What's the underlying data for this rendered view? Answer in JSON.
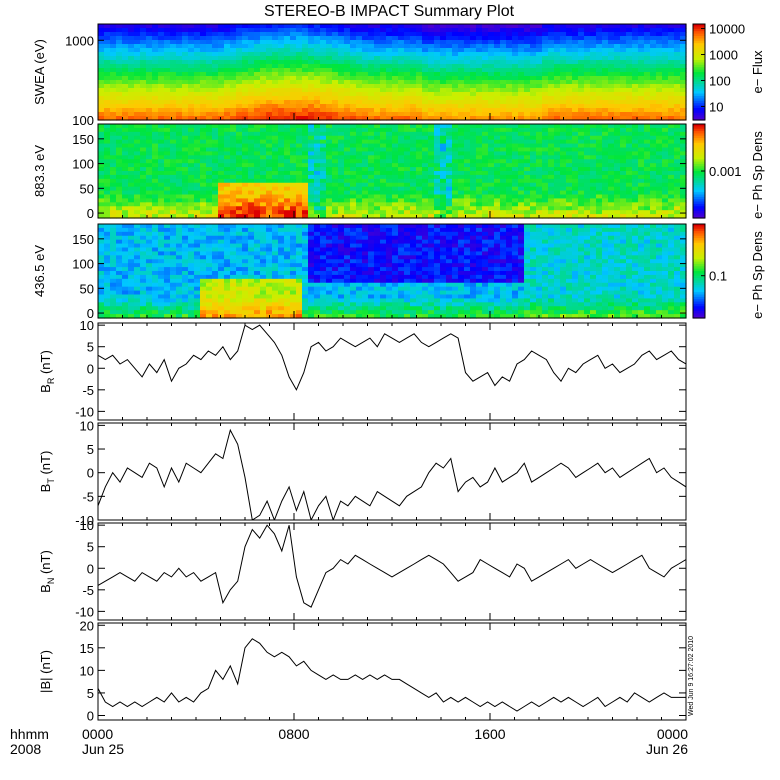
{
  "page": {
    "title": "STEREO-B IMPACT Summary Plot",
    "timestamp": "Wed Jun 9 16:27:02 2010",
    "time_label_1": "hhmm",
    "time_label_2": "2008"
  },
  "chart_data": [
    {
      "type": "heatmap",
      "ylabel": "SWEA (eV)",
      "ylim": [
        100,
        1600
      ],
      "yscale": "log",
      "yticks": [
        "100",
        "1000"
      ],
      "colorbar": {
        "label": "e− Flux",
        "scale": "log",
        "range": [
          3,
          15000
        ],
        "ticks": [
          "10000",
          "1000",
          "100",
          "10"
        ]
      }
    },
    {
      "type": "heatmap",
      "ylabel": "883.3 eV",
      "ylim": [
        -10,
        180
      ],
      "yticks": [
        "0",
        "50",
        "100",
        "150"
      ],
      "colorbar": {
        "label": "e− Ph Sp Dens",
        "ticks": [
          "0.001"
        ]
      }
    },
    {
      "type": "heatmap",
      "ylabel": "436.5 eV",
      "ylim": [
        -10,
        180
      ],
      "yticks": [
        "0",
        "50",
        "100",
        "150"
      ],
      "colorbar": {
        "label": "e− Ph Sp Dens",
        "ticks": [
          "0.1"
        ]
      }
    },
    {
      "type": "line",
      "ylabel": "B_R (nT)",
      "ylabel_main": "B",
      "ylabel_sub": "R",
      "ylabel_unit": "(nT)",
      "ylim": [
        -12,
        10.5
      ],
      "yticks": [
        "10",
        "5",
        "0",
        "-5",
        "-10"
      ],
      "series": [
        {
          "x": [
            0,
            0.3,
            0.6,
            0.9,
            1.2,
            1.5,
            1.8,
            2.1,
            2.4,
            2.7,
            3.0,
            3.3,
            3.6,
            3.9,
            4.2,
            4.5,
            4.8,
            5.1,
            5.4,
            5.7,
            6.0,
            6.3,
            6.6,
            6.9,
            7.2,
            7.5,
            7.8,
            8.1,
            8.4,
            8.7,
            9.0,
            9.3,
            9.6,
            9.9,
            10.2,
            10.5,
            10.8,
            11.1,
            11.4,
            11.7,
            12.0,
            12.3,
            12.6,
            12.9,
            13.2,
            13.5,
            13.8,
            14.1,
            14.4,
            14.7,
            15.0,
            15.3,
            15.6,
            15.9,
            16.2,
            16.5,
            16.8,
            17.1,
            17.4,
            17.7,
            18.0,
            18.3,
            18.6,
            18.9,
            19.2,
            19.5,
            19.8,
            20.1,
            20.4,
            20.7,
            21.0,
            21.3,
            21.6,
            21.9,
            22.2,
            22.5,
            22.8,
            23.1,
            23.4,
            23.7,
            24.0
          ],
          "values": [
            3,
            2,
            3,
            1,
            2,
            0,
            -2,
            1,
            -1,
            2,
            -3,
            0,
            1,
            3,
            2,
            4,
            3,
            5,
            2,
            4,
            10,
            9,
            10,
            8,
            6,
            3,
            -2,
            -5,
            -1,
            5,
            6,
            4,
            5,
            7,
            6,
            5,
            6,
            7,
            5,
            8,
            7,
            6,
            7,
            8,
            6,
            5,
            6,
            7,
            8,
            7,
            -1,
            -3,
            -2,
            -1,
            -4,
            -2,
            -3,
            1,
            2,
            4,
            3,
            2,
            -1,
            -3,
            0,
            -1,
            1,
            2,
            3,
            0,
            1,
            -1,
            0,
            1,
            3,
            4,
            2,
            3,
            4,
            2,
            1
          ]
        }
      ]
    },
    {
      "type": "line",
      "ylabel": "B_T (nT)",
      "ylabel_main": "B",
      "ylabel_sub": "T",
      "ylabel_unit": "(nT)",
      "ylim": [
        -10,
        10.5
      ],
      "yticks": [
        "10",
        "5",
        "0",
        "-5",
        "-10"
      ],
      "series": [
        {
          "x": [
            0,
            0.3,
            0.6,
            0.9,
            1.2,
            1.5,
            1.8,
            2.1,
            2.4,
            2.7,
            3.0,
            3.3,
            3.6,
            3.9,
            4.2,
            4.5,
            4.8,
            5.1,
            5.4,
            5.7,
            6.0,
            6.3,
            6.6,
            6.9,
            7.2,
            7.5,
            7.8,
            8.1,
            8.4,
            8.7,
            9.0,
            9.3,
            9.6,
            9.9,
            10.2,
            10.5,
            10.8,
            11.1,
            11.4,
            11.7,
            12.0,
            12.3,
            12.6,
            12.9,
            13.2,
            13.5,
            13.8,
            14.1,
            14.4,
            14.7,
            15.0,
            15.3,
            15.6,
            15.9,
            16.2,
            16.5,
            16.8,
            17.1,
            17.4,
            17.7,
            18.0,
            18.3,
            18.6,
            18.9,
            19.2,
            19.5,
            19.8,
            20.1,
            20.4,
            20.7,
            21.0,
            21.3,
            21.6,
            21.9,
            22.2,
            22.5,
            22.8,
            23.1,
            23.4,
            23.7,
            24.0
          ],
          "values": [
            -7,
            -3,
            0,
            -2,
            1,
            0,
            -1,
            2,
            1,
            -3,
            1,
            -2,
            2,
            1,
            0,
            2,
            4,
            3,
            9,
            6,
            -1,
            -10,
            -9,
            -6,
            -10,
            -6,
            -3,
            -8,
            -4,
            -10,
            -7,
            -5,
            -10,
            -6,
            -7,
            -5,
            -6,
            -7,
            -4,
            -5,
            -6,
            -7,
            -5,
            -4,
            -3,
            0,
            2,
            1,
            3,
            -4,
            -2,
            -1,
            -3,
            -2,
            1,
            -2,
            -1,
            0,
            2,
            -2,
            -1,
            0,
            1,
            2,
            1,
            -1,
            0,
            1,
            2,
            0,
            1,
            -1,
            0,
            1,
            2,
            3,
            0,
            1,
            -1,
            -2,
            -3
          ]
        }
      ]
    },
    {
      "type": "line",
      "ylabel": "B_N (nT)",
      "ylabel_main": "B",
      "ylabel_sub": "N",
      "ylabel_unit": "(nT)",
      "ylim": [
        -12,
        10.5
      ],
      "yticks": [
        "10",
        "5",
        "0",
        "-5",
        "-10"
      ],
      "series": [
        {
          "x": [
            0,
            0.3,
            0.6,
            0.9,
            1.2,
            1.5,
            1.8,
            2.1,
            2.4,
            2.7,
            3.0,
            3.3,
            3.6,
            3.9,
            4.2,
            4.5,
            4.8,
            5.1,
            5.4,
            5.7,
            6.0,
            6.3,
            6.6,
            6.9,
            7.2,
            7.5,
            7.8,
            8.1,
            8.4,
            8.7,
            9.0,
            9.3,
            9.6,
            9.9,
            10.2,
            10.5,
            10.8,
            11.1,
            11.4,
            11.7,
            12.0,
            12.3,
            12.6,
            12.9,
            13.2,
            13.5,
            13.8,
            14.1,
            14.4,
            14.7,
            15.0,
            15.3,
            15.6,
            15.9,
            16.2,
            16.5,
            16.8,
            17.1,
            17.4,
            17.7,
            18.0,
            18.3,
            18.6,
            18.9,
            19.2,
            19.5,
            19.8,
            20.1,
            20.4,
            20.7,
            21.0,
            21.3,
            21.6,
            21.9,
            22.2,
            22.5,
            22.8,
            23.1,
            23.4,
            23.7,
            24.0
          ],
          "values": [
            -4,
            -3,
            -2,
            -1,
            -2,
            -3,
            -1,
            -2,
            -3,
            -1,
            -2,
            0,
            -2,
            -1,
            -3,
            -2,
            -1,
            -8,
            -5,
            -3,
            5,
            9,
            7,
            10,
            8,
            4,
            10,
            -2,
            -8,
            -9,
            -5,
            -1,
            0,
            2,
            1,
            3,
            2,
            1,
            0,
            -1,
            -2,
            -1,
            0,
            1,
            2,
            3,
            2,
            1,
            -1,
            -3,
            -2,
            -1,
            2,
            1,
            0,
            -1,
            -2,
            1,
            0,
            -3,
            -2,
            -1,
            0,
            1,
            2,
            0,
            1,
            2,
            1,
            0,
            -1,
            0,
            1,
            2,
            3,
            0,
            -1,
            -2,
            0,
            1,
            2
          ]
        }
      ]
    },
    {
      "type": "line",
      "ylabel": "|B| (nT)",
      "ylabel_main": "|B|",
      "ylabel_sub": "",
      "ylabel_unit": "(nT)",
      "ylim": [
        -1,
        20.5
      ],
      "yticks": [
        "20",
        "15",
        "10",
        "5",
        "0"
      ],
      "series": [
        {
          "x": [
            0,
            0.3,
            0.6,
            0.9,
            1.2,
            1.5,
            1.8,
            2.1,
            2.4,
            2.7,
            3.0,
            3.3,
            3.6,
            3.9,
            4.2,
            4.5,
            4.8,
            5.1,
            5.4,
            5.7,
            6.0,
            6.3,
            6.6,
            6.9,
            7.2,
            7.5,
            7.8,
            8.1,
            8.4,
            8.7,
            9.0,
            9.3,
            9.6,
            9.9,
            10.2,
            10.5,
            10.8,
            11.1,
            11.4,
            11.7,
            12.0,
            12.3,
            12.6,
            12.9,
            13.2,
            13.5,
            13.8,
            14.1,
            14.4,
            14.7,
            15.0,
            15.3,
            15.6,
            15.9,
            16.2,
            16.5,
            16.8,
            17.1,
            17.4,
            17.7,
            18.0,
            18.3,
            18.6,
            18.9,
            19.2,
            19.5,
            19.8,
            20.1,
            20.4,
            20.7,
            21.0,
            21.3,
            21.6,
            21.9,
            22.2,
            22.5,
            22.8,
            23.1,
            23.4,
            23.7,
            24.0
          ],
          "values": [
            6,
            3,
            2,
            3,
            2,
            3,
            2,
            3,
            4,
            3,
            5,
            3,
            4,
            3,
            5,
            6,
            10,
            8,
            11,
            7,
            15,
            17,
            16,
            14,
            13,
            14,
            13,
            11,
            12,
            10,
            9,
            8,
            9,
            8,
            8,
            9,
            8,
            9,
            8,
            9,
            8,
            8,
            7,
            6,
            5,
            4,
            5,
            3,
            4,
            3,
            4,
            3,
            2,
            3,
            2,
            3,
            2,
            1,
            2,
            3,
            2,
            3,
            4,
            3,
            4,
            3,
            2,
            3,
            4,
            2,
            3,
            4,
            3,
            5,
            4,
            3,
            4,
            5,
            4,
            4,
            4
          ]
        }
      ]
    }
  ],
  "time_axis": {
    "range": [
      0,
      24
    ],
    "ticks": [
      {
        "t": 0,
        "label": "0000",
        "date": "Jun 25"
      },
      {
        "t": 8,
        "label": "0800",
        "date": ""
      },
      {
        "t": 16,
        "label": "1600",
        "date": ""
      },
      {
        "t": 24,
        "label": "0000",
        "date": "Jun 26"
      }
    ]
  }
}
